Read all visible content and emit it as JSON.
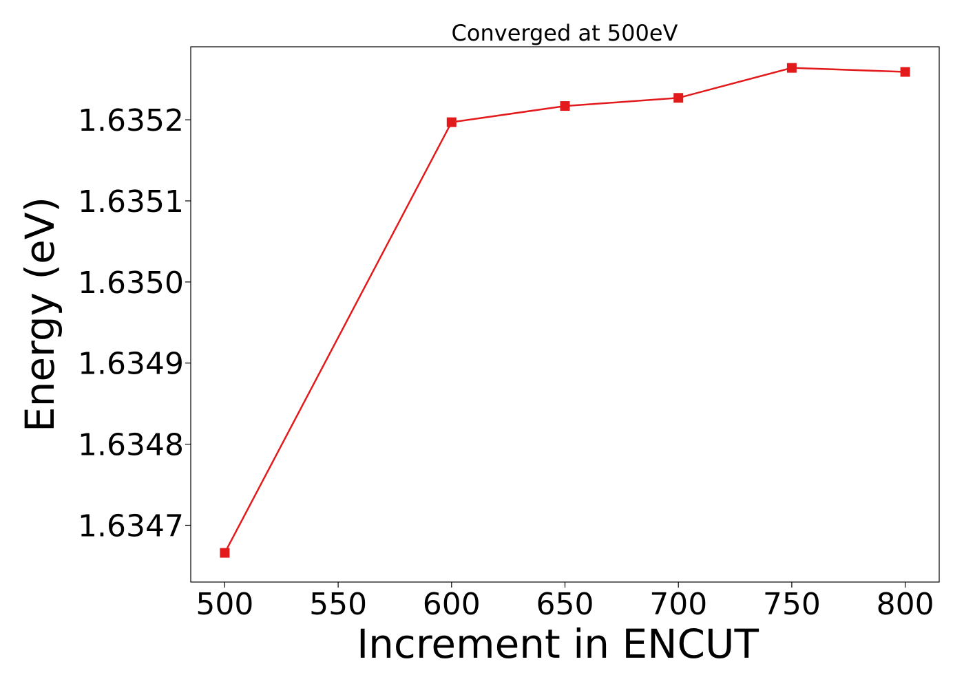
{
  "chart_data": {
    "type": "line",
    "title": "Converged at 500eV",
    "xlabel": "Increment in ENCUT",
    "ylabel": "Energy (eV)",
    "xlim": [
      485,
      815
    ],
    "ylim": [
      1.63463,
      1.63529
    ],
    "xticks": [
      500,
      550,
      600,
      650,
      700,
      750,
      800
    ],
    "yticks": [
      1.6347,
      1.6348,
      1.6349,
      1.635,
      1.6351,
      1.6352
    ],
    "ytick_labels": [
      "1.6347",
      "1.6348",
      "1.6349",
      "1.6350",
      "1.6351",
      "1.6352"
    ],
    "grid": false,
    "series": [
      {
        "color": "#e31a1c",
        "marker": "square",
        "x": [
          500,
          600,
          650,
          700,
          750,
          800
        ],
        "y": [
          1.634666,
          1.635197,
          1.635217,
          1.635227,
          1.635264,
          1.635259
        ]
      }
    ]
  }
}
